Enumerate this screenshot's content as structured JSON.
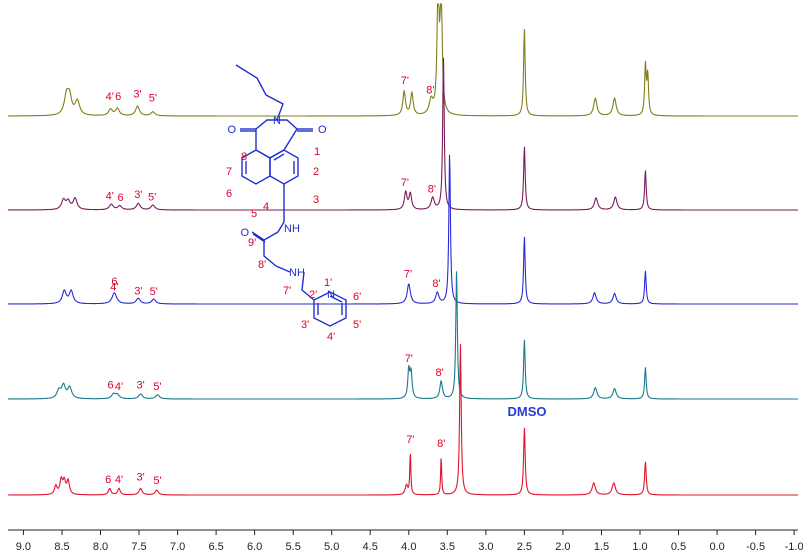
{
  "chart_data": {
    "type": "line",
    "title": "",
    "xlabel": "",
    "ylabel": "",
    "x_reversed": true,
    "xlim": [
      9.2,
      -1.05
    ],
    "x_ticks": [
      9.0,
      8.5,
      8.0,
      7.5,
      7.0,
      6.5,
      6.0,
      5.5,
      5.0,
      4.5,
      4.0,
      3.5,
      3.0,
      2.5,
      2.0,
      1.5,
      1.0,
      0.5,
      0.0,
      -0.5,
      -1.0
    ],
    "x_tick_labels": [
      "9.0",
      "8.5",
      "8.0",
      "7.5",
      "7.0",
      "6.5",
      "6.0",
      "5.5",
      "5.0",
      "4.5",
      "4.0",
      "3.5",
      "3.0",
      "2.5",
      "2.0",
      "1.5",
      "1.0",
      "0.5",
      "0.0",
      "-0.5",
      "-1.0"
    ],
    "series": [
      {
        "color": "#7f7f1c",
        "peaks": [
          {
            "ppm": 8.44,
            "h": 0.25,
            "w": 0.035
          },
          {
            "ppm": 8.4,
            "h": 0.2,
            "w": 0.03
          },
          {
            "ppm": 8.3,
            "h": 0.18,
            "w": 0.035
          },
          {
            "ppm": 7.87,
            "h": 0.08,
            "w": 0.03
          },
          {
            "ppm": 7.78,
            "h": 0.09,
            "w": 0.03
          },
          {
            "ppm": 7.52,
            "h": 0.12,
            "w": 0.03
          },
          {
            "ppm": 7.32,
            "h": 0.05,
            "w": 0.03
          },
          {
            "ppm": 4.06,
            "h": 0.3,
            "w": 0.02
          },
          {
            "ppm": 3.96,
            "h": 0.28,
            "w": 0.02
          },
          {
            "ppm": 3.71,
            "h": 0.18,
            "w": 0.03
          },
          {
            "ppm": 3.62,
            "h": 1.6,
            "w": 0.015
          },
          {
            "ppm": 3.58,
            "h": 1.6,
            "w": 0.015
          },
          {
            "ppm": 2.5,
            "h": 1.1,
            "w": 0.012
          },
          {
            "ppm": 1.58,
            "h": 0.22,
            "w": 0.025
          },
          {
            "ppm": 1.33,
            "h": 0.22,
            "w": 0.025
          },
          {
            "ppm": 0.93,
            "h": 0.62,
            "w": 0.012
          },
          {
            "ppm": 0.9,
            "h": 0.5,
            "w": 0.012
          }
        ],
        "labels": [
          {
            "text": "4'",
            "ppm": 7.88,
            "level": 0.2
          },
          {
            "text": "6",
            "ppm": 7.77,
            "level": 0.2
          },
          {
            "text": "3'",
            "ppm": 7.52,
            "level": 0.23
          },
          {
            "text": "5'",
            "ppm": 7.32,
            "level": 0.18
          },
          {
            "text": "7'",
            "ppm": 4.05,
            "level": 0.4
          },
          {
            "text": "8'",
            "ppm": 3.72,
            "level": 0.28
          }
        ]
      },
      {
        "color": "#7a1c5b",
        "peaks": [
          {
            "ppm": 8.48,
            "h": 0.12,
            "w": 0.03
          },
          {
            "ppm": 8.42,
            "h": 0.1,
            "w": 0.03
          },
          {
            "ppm": 8.33,
            "h": 0.14,
            "w": 0.03
          },
          {
            "ppm": 7.86,
            "h": 0.07,
            "w": 0.03
          },
          {
            "ppm": 7.75,
            "h": 0.05,
            "w": 0.03
          },
          {
            "ppm": 7.51,
            "h": 0.08,
            "w": 0.03
          },
          {
            "ppm": 7.32,
            "h": 0.06,
            "w": 0.03
          },
          {
            "ppm": 4.04,
            "h": 0.22,
            "w": 0.02
          },
          {
            "ppm": 3.98,
            "h": 0.2,
            "w": 0.02
          },
          {
            "ppm": 3.69,
            "h": 0.15,
            "w": 0.025
          },
          {
            "ppm": 3.55,
            "h": 1.9,
            "w": 0.012
          },
          {
            "ppm": 2.5,
            "h": 0.8,
            "w": 0.012
          },
          {
            "ppm": 1.57,
            "h": 0.15,
            "w": 0.025
          },
          {
            "ppm": 1.32,
            "h": 0.16,
            "w": 0.025
          },
          {
            "ppm": 0.93,
            "h": 0.5,
            "w": 0.012
          }
        ],
        "labels": [
          {
            "text": "4'",
            "ppm": 7.88,
            "level": 0.13
          },
          {
            "text": "6",
            "ppm": 7.74,
            "level": 0.11
          },
          {
            "text": "3'",
            "ppm": 7.51,
            "level": 0.15
          },
          {
            "text": "5'",
            "ppm": 7.33,
            "level": 0.12
          },
          {
            "text": "7'",
            "ppm": 4.05,
            "level": 0.3
          },
          {
            "text": "8'",
            "ppm": 3.7,
            "level": 0.22
          }
        ]
      },
      {
        "color": "#2a2ad6",
        "peaks": [
          {
            "ppm": 8.47,
            "h": 0.16,
            "w": 0.03
          },
          {
            "ppm": 8.38,
            "h": 0.16,
            "w": 0.03
          },
          {
            "ppm": 7.82,
            "h": 0.14,
            "w": 0.035
          },
          {
            "ppm": 7.51,
            "h": 0.07,
            "w": 0.03
          },
          {
            "ppm": 7.31,
            "h": 0.06,
            "w": 0.03
          },
          {
            "ppm": 4.0,
            "h": 0.25,
            "w": 0.025
          },
          {
            "ppm": 3.63,
            "h": 0.14,
            "w": 0.025
          },
          {
            "ppm": 3.47,
            "h": 1.9,
            "w": 0.012
          },
          {
            "ppm": 2.5,
            "h": 0.85,
            "w": 0.012
          },
          {
            "ppm": 1.59,
            "h": 0.14,
            "w": 0.025
          },
          {
            "ppm": 1.33,
            "h": 0.13,
            "w": 0.025
          },
          {
            "ppm": 0.93,
            "h": 0.42,
            "w": 0.012
          }
        ],
        "labels": [
          {
            "text": "6",
            "ppm": 7.82,
            "level": 0.24
          },
          {
            "text": "4'",
            "ppm": 7.82,
            "level": 0.17
          },
          {
            "text": "3'",
            "ppm": 7.51,
            "level": 0.12
          },
          {
            "text": "5'",
            "ppm": 7.31,
            "level": 0.11
          },
          {
            "text": "7'",
            "ppm": 4.01,
            "level": 0.33
          },
          {
            "text": "8'",
            "ppm": 3.64,
            "level": 0.21
          }
        ]
      },
      {
        "color": "#1b7a8c",
        "peaks": [
          {
            "ppm": 8.54,
            "h": 0.1,
            "w": 0.03
          },
          {
            "ppm": 8.48,
            "h": 0.16,
            "w": 0.03
          },
          {
            "ppm": 8.4,
            "h": 0.14,
            "w": 0.03
          },
          {
            "ppm": 7.83,
            "h": 0.06,
            "w": 0.03
          },
          {
            "ppm": 7.78,
            "h": 0.05,
            "w": 0.03
          },
          {
            "ppm": 7.48,
            "h": 0.06,
            "w": 0.03
          },
          {
            "ppm": 7.26,
            "h": 0.05,
            "w": 0.03
          },
          {
            "ppm": 4.0,
            "h": 0.36,
            "w": 0.015
          },
          {
            "ppm": 3.97,
            "h": 0.32,
            "w": 0.015
          },
          {
            "ppm": 3.58,
            "h": 0.22,
            "w": 0.02
          },
          {
            "ppm": 3.38,
            "h": 1.6,
            "w": 0.012
          },
          {
            "ppm": 2.5,
            "h": 0.75,
            "w": 0.012
          },
          {
            "ppm": 1.58,
            "h": 0.14,
            "w": 0.025
          },
          {
            "ppm": 1.33,
            "h": 0.13,
            "w": 0.025
          },
          {
            "ppm": 0.93,
            "h": 0.4,
            "w": 0.012
          }
        ],
        "labels": [
          {
            "text": "6",
            "ppm": 7.87,
            "level": 0.13
          },
          {
            "text": "4'",
            "ppm": 7.76,
            "level": 0.11
          },
          {
            "text": "3'",
            "ppm": 7.48,
            "level": 0.13
          },
          {
            "text": "5'",
            "ppm": 7.26,
            "level": 0.11
          },
          {
            "text": "7'",
            "ppm": 4.0,
            "level": 0.46
          },
          {
            "text": "8'",
            "ppm": 3.6,
            "level": 0.29
          }
        ]
      },
      {
        "color": "#e0142c",
        "peaks": [
          {
            "ppm": 8.58,
            "h": 0.11,
            "w": 0.02
          },
          {
            "ppm": 8.51,
            "h": 0.18,
            "w": 0.02
          },
          {
            "ppm": 8.47,
            "h": 0.16,
            "w": 0.02
          },
          {
            "ppm": 8.42,
            "h": 0.17,
            "w": 0.02
          },
          {
            "ppm": 7.88,
            "h": 0.08,
            "w": 0.02
          },
          {
            "ppm": 7.76,
            "h": 0.08,
            "w": 0.02
          },
          {
            "ppm": 7.48,
            "h": 0.08,
            "w": 0.025
          },
          {
            "ppm": 7.27,
            "h": 0.06,
            "w": 0.025
          },
          {
            "ppm": 4.03,
            "h": 0.12,
            "w": 0.02
          },
          {
            "ppm": 3.98,
            "h": 0.54,
            "w": 0.008
          },
          {
            "ppm": 3.58,
            "h": 0.48,
            "w": 0.008
          },
          {
            "ppm": 3.33,
            "h": 1.9,
            "w": 0.012
          },
          {
            "ppm": 2.5,
            "h": 0.85,
            "w": 0.012
          },
          {
            "ppm": 1.6,
            "h": 0.15,
            "w": 0.025
          },
          {
            "ppm": 1.34,
            "h": 0.15,
            "w": 0.025
          },
          {
            "ppm": 0.93,
            "h": 0.42,
            "w": 0.012
          }
        ],
        "labels": [
          {
            "text": "6",
            "ppm": 7.9,
            "level": 0.15
          },
          {
            "text": "4'",
            "ppm": 7.76,
            "level": 0.15
          },
          {
            "text": "3'",
            "ppm": 7.48,
            "level": 0.18
          },
          {
            "text": "5'",
            "ppm": 7.26,
            "level": 0.14
          },
          {
            "text": "7'",
            "ppm": 3.98,
            "level": 0.65
          },
          {
            "text": "8'",
            "ppm": 3.58,
            "level": 0.6
          }
        ]
      }
    ],
    "annotations": [
      {
        "text": "DMSO",
        "ppm": 2.5
      }
    ],
    "structure_labels": [
      "1",
      "2",
      "3",
      "4",
      "5",
      "6",
      "7",
      "8",
      "9'",
      "8'",
      "7'",
      "1'",
      "2'",
      "3'",
      "4'",
      "5'",
      "6'"
    ],
    "structure_atoms": [
      "O",
      "O",
      "N",
      "NH",
      "O",
      "NH",
      "N"
    ]
  },
  "colors": {
    "axis": "#222222",
    "label": "#e0002a",
    "molecule": "#1f2fd0"
  }
}
